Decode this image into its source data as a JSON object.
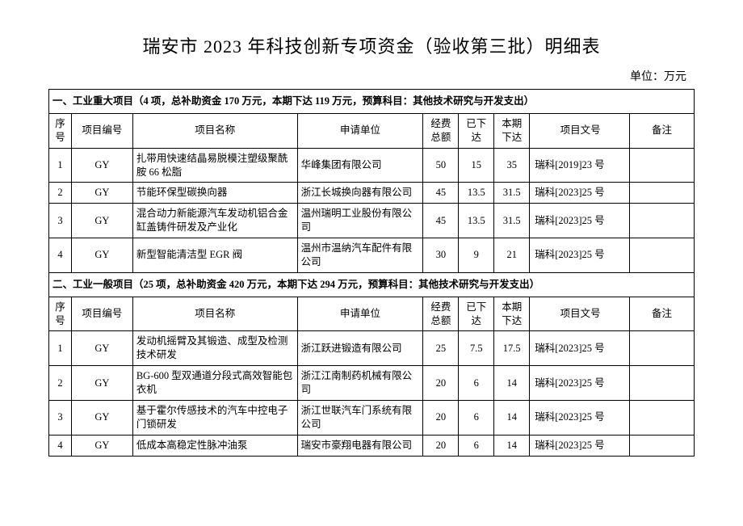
{
  "title": "瑞安市 2023 年科技创新专项资金（验收第三批）明细表",
  "unit_label": "单位：万元",
  "columns": {
    "seq": "序号",
    "code": "项目编号",
    "name": "项目名称",
    "org": "申请单位",
    "total": "经费总额",
    "paid": "已下达",
    "this_period": "本期下达",
    "doc": "项目文号",
    "note": "备注"
  },
  "sections": [
    {
      "header": "一、工业重大项目（4 项，总补助资金 170 万元，本期下达 119 万元，预算科目：其他技术研究与开发支出）",
      "rows": [
        {
          "seq": "1",
          "code": "GY",
          "name": "扎带用快速结晶易脱模注塑级聚酰胺 66 松脂",
          "org": "华峰集团有限公司",
          "total": "50",
          "paid": "15",
          "this": "35",
          "doc": "瑞科[2019]23 号",
          "note": ""
        },
        {
          "seq": "2",
          "code": "GY",
          "name": "节能环保型碳换向器",
          "org": "浙江长城换向器有限公司",
          "total": "45",
          "paid": "13.5",
          "this": "31.5",
          "doc": "瑞科[2023]25 号",
          "note": ""
        },
        {
          "seq": "3",
          "code": "GY",
          "name": "混合动力新能源汽车发动机铝合金缸盖铸件研发及产业化",
          "org": "温州瑞明工业股份有限公司",
          "total": "45",
          "paid": "13.5",
          "this": "31.5",
          "doc": "瑞科[2023]25 号",
          "note": ""
        },
        {
          "seq": "4",
          "code": "GY",
          "name": "新型智能清洁型 EGR 阀",
          "org": "温州市温纳汽车配件有限公司",
          "total": "30",
          "paid": "9",
          "this": "21",
          "doc": "瑞科[2023]25 号",
          "note": ""
        }
      ]
    },
    {
      "header": "二、工业一般项目（25 项，总补助资金 420 万元，本期下达 294 万元，预算科目：其他技术研究与开发支出）",
      "rows": [
        {
          "seq": "1",
          "code": "GY",
          "name": "发动机摇臂及其锻造、成型及检测技术研发",
          "org": "浙江跃进锻造有限公司",
          "total": "25",
          "paid": "7.5",
          "this": "17.5",
          "doc": "瑞科[2023]25 号",
          "note": ""
        },
        {
          "seq": "2",
          "code": "GY",
          "name": "BG-600 型双通道分段式高效智能包衣机",
          "org": "浙江江南制药机械有限公司",
          "total": "20",
          "paid": "6",
          "this": "14",
          "doc": "瑞科[2023]25 号",
          "note": ""
        },
        {
          "seq": "3",
          "code": "GY",
          "name": "基于霍尔传感技术的汽车中控电子门锁研发",
          "org": "浙江世联汽车门系统有限公司",
          "total": "20",
          "paid": "6",
          "this": "14",
          "doc": "瑞科[2023]25 号",
          "note": ""
        },
        {
          "seq": "4",
          "code": "GY",
          "name": "低成本高稳定性脉冲油泵",
          "org": "瑞安市豪翔电器有限公司",
          "total": "20",
          "paid": "6",
          "this": "14",
          "doc": "瑞科[2023]25 号",
          "note": ""
        }
      ]
    }
  ]
}
